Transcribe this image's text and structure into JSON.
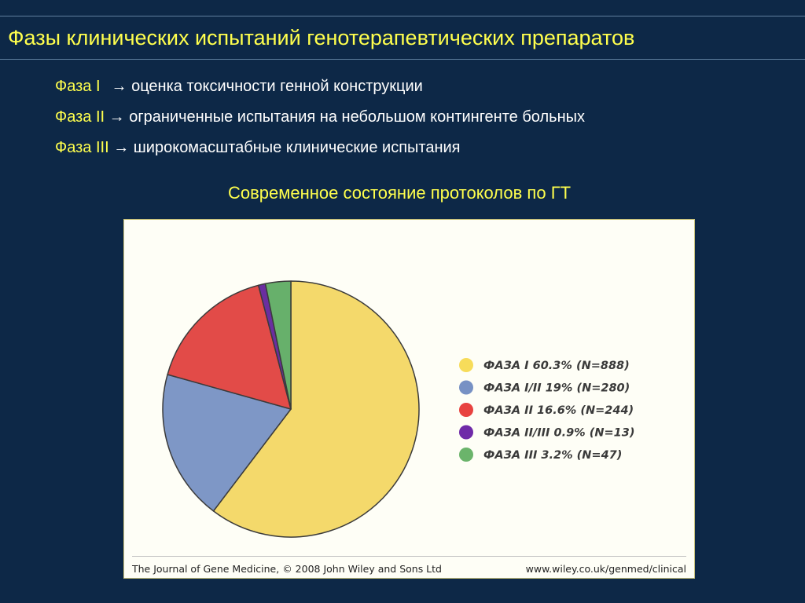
{
  "slide": {
    "title": "Фазы клинических испытаний генотерапевтических препаратов",
    "phases": [
      {
        "name": "Фаза I",
        "arrow": "→",
        "desc": "оценка токсичности генной конструкции"
      },
      {
        "name": "Фаза II",
        "arrow": "→",
        "desc": "ограниченные испытания на небольшом контингенте больных"
      },
      {
        "name": "Фаза III",
        "arrow": "→",
        "desc": "широкомасштабные клинические испытания"
      }
    ],
    "subtitle": "Современное состояние протоколов по ГТ"
  },
  "chart_data": {
    "type": "pie",
    "categories": [
      "ФАЗА I",
      "ФАЗА I/II",
      "ФАЗА II",
      "ФАЗА II/III",
      "ФАЗА III"
    ],
    "values": [
      888,
      280,
      244,
      13,
      47
    ],
    "legend_labels": [
      "ФАЗА I 60.3% (N=888)",
      "ФАЗА I/II 19% (N=280)",
      "ФАЗА II 16.6% (N=244)",
      "ФАЗА II/III 0.9% (N=13)",
      "ФАЗА III 3.2% (N=47)"
    ],
    "colors": [
      "#f4d96b",
      "#7e97c6",
      "#e24b48",
      "#6a2ea0",
      "#67b06b"
    ],
    "legend_dot_colors": [
      "#f7dc5a",
      "#7791c4",
      "#e8423f",
      "#6f2aa8",
      "#6bb46b"
    ],
    "legend_position": "right",
    "start_direction": "12 o'clock",
    "direction": "clockwise"
  },
  "chart_footer": {
    "source": "The Journal of Gene Medicine, © 2008 John Wiley and Sons Ltd",
    "url": "www.wiley.co.uk/genmed/clinical"
  }
}
